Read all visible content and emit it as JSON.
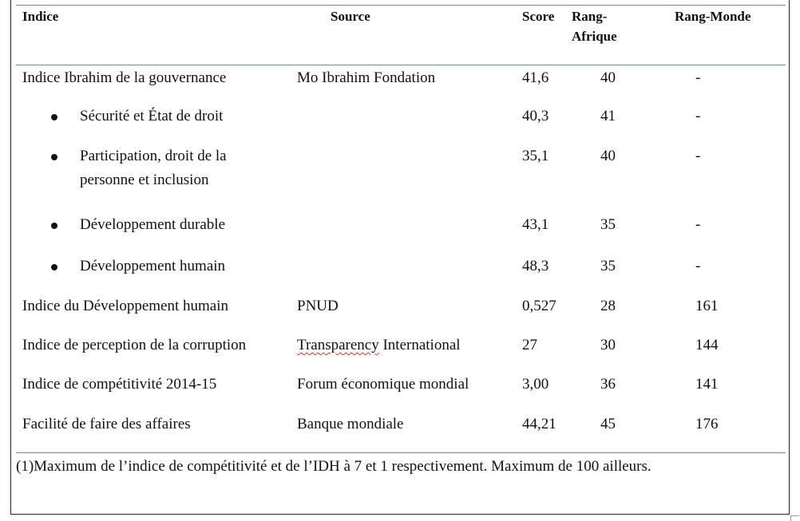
{
  "table": {
    "headers": {
      "indice": "Indice",
      "source": "Source",
      "score": "Score",
      "rang_afrique": "Rang-Afrique",
      "rang_monde": "Rang-Monde"
    },
    "rows": [
      {
        "indice": "Indice Ibrahim de la gouvernance",
        "source": "Mo Ibrahim Fondation",
        "score": "41,6",
        "rang_afrique": "40",
        "rang_monde": "-"
      },
      {
        "indice": "Sécurité et État de droit",
        "source": "",
        "score": "40,3",
        "rang_afrique": "41",
        "rang_monde": "-"
      },
      {
        "indice": "Participation, droit de la personne et inclusion",
        "source": "",
        "score": "35,1",
        "rang_afrique": "40",
        "rang_monde": "-"
      },
      {
        "indice": "Développement durable",
        "source": "",
        "score": "43,1",
        "rang_afrique": "35",
        "rang_monde": "-"
      },
      {
        "indice": "Développement humain",
        "source": "",
        "score": "48,3",
        "rang_afrique": "35",
        "rang_monde": "-"
      },
      {
        "indice": "Indice du Développement humain",
        "source": "PNUD",
        "score": "0,527",
        "rang_afrique": "28",
        "rang_monde": "161"
      },
      {
        "indice": "Indice de perception de la corruption",
        "source_part1": "Transparency",
        "source_part2": " International",
        "score": "27",
        "rang_afrique": "30",
        "rang_monde": "144"
      },
      {
        "indice": "Indice de compétitivité 2014-15",
        "source": "Forum économique mondial",
        "score": "3,00",
        "rang_afrique": "36",
        "rang_monde": "141"
      },
      {
        "indice": "Facilité de faire des affaires",
        "source": "Banque mondiale",
        "score": "44,21",
        "rang_afrique": "45",
        "rang_monde": "176"
      }
    ]
  },
  "footnote": "(1)Maximum de l’indice de compétitivité et de l’IDH à 7 et 1 respectivement. Maximum de 100 ailleurs."
}
